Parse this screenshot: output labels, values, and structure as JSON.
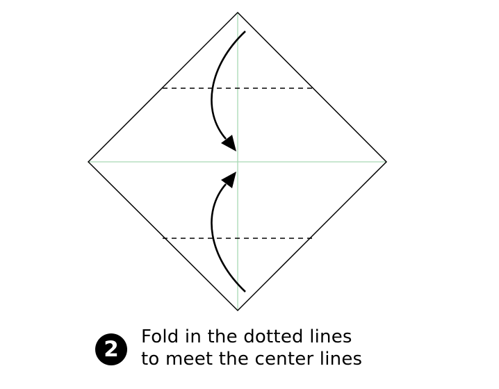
{
  "step": {
    "number": "2",
    "instruction_lines": [
      "Fold in the dotted lines",
      "to meet the center lines"
    ]
  },
  "colors": {
    "outline": "#000000",
    "center_line": "#a8d8b4",
    "fold_line": "#000000",
    "arrow": "#000000",
    "badge_bg": "#000000",
    "badge_text": "#ffffff"
  },
  "icons": {
    "top_arrow": "curved-arrow-down-icon",
    "bottom_arrow": "curved-arrow-up-icon"
  }
}
